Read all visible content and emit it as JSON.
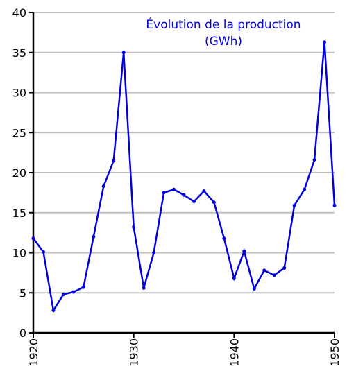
{
  "chart_data": {
    "type": "line",
    "title": "Évolution de la production",
    "subtitle": "(GWh)",
    "x": [
      1920,
      1921,
      1922,
      1923,
      1924,
      1925,
      1926,
      1927,
      1928,
      1929,
      1930,
      1931,
      1932,
      1933,
      1934,
      1935,
      1936,
      1937,
      1938,
      1939,
      1940,
      1941,
      1942,
      1943,
      1944,
      1945,
      1946,
      1947,
      1948,
      1949,
      1950
    ],
    "series": [
      {
        "name": "production",
        "color": "#0000dd",
        "values": [
          11.8,
          10.1,
          2.8,
          4.8,
          5.1,
          5.7,
          12.0,
          18.3,
          21.5,
          35.0,
          13.2,
          5.6,
          10.0,
          17.5,
          17.9,
          17.2,
          16.4,
          17.7,
          16.3,
          11.8,
          6.8,
          10.2,
          5.5,
          7.8,
          7.2,
          8.1,
          15.9,
          17.9,
          21.6,
          36.3,
          15.9
        ]
      }
    ],
    "xlim": [
      1920,
      1950
    ],
    "xticks": [
      1920,
      1930,
      1940,
      1950
    ],
    "ylim": [
      0,
      40
    ],
    "yticks": [
      0,
      5,
      10,
      15,
      20,
      25,
      30,
      35,
      40
    ],
    "grid": true
  }
}
